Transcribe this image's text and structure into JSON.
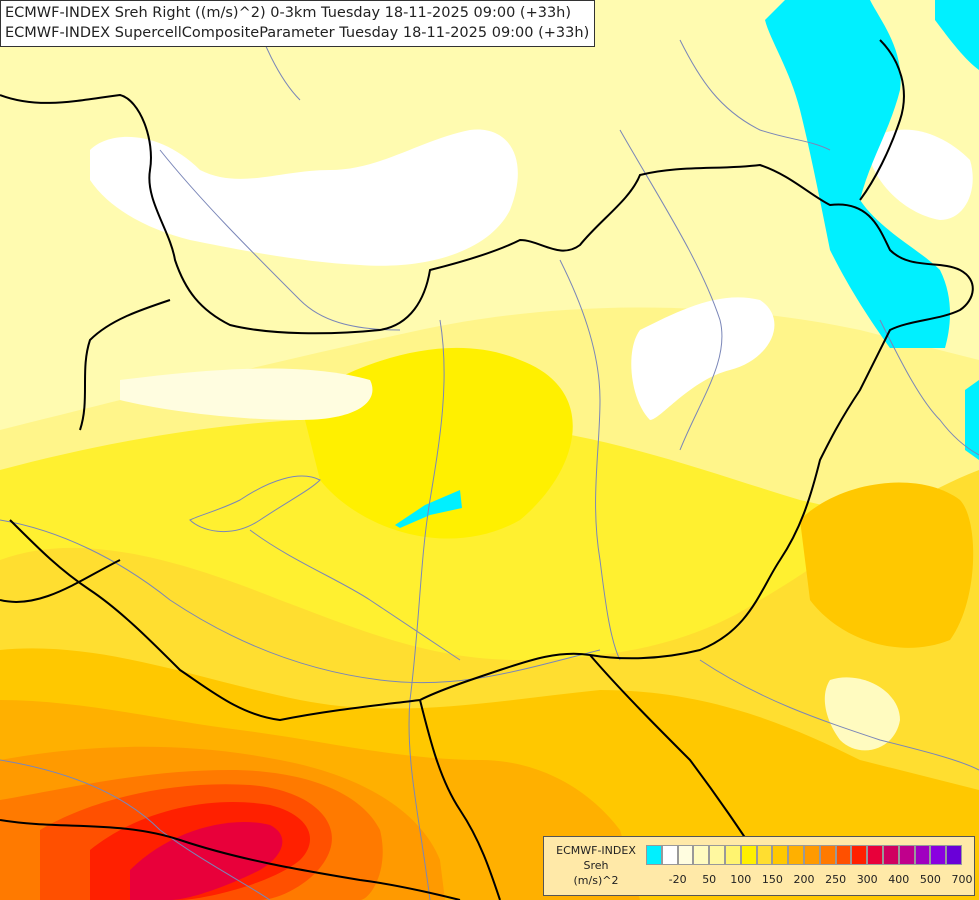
{
  "header": {
    "line1": "ECMWF-INDEX Sreh Right ((m/s)^2) 0-3km Tuesday 18-11-2025 09:00 (+33h)",
    "line2": "ECMWF-INDEX SupercellCompositeParameter Tuesday 18-11-2025 09:00 (+33h)"
  },
  "legend": {
    "model": "ECMWF-INDEX",
    "param": "Sreh",
    "unit": "(m/s)^2",
    "colors": [
      "#00f0ff",
      "#ffffff",
      "#fffde0",
      "#fffbc0",
      "#fff8a0",
      "#fff470",
      "#fff000",
      "#ffde30",
      "#ffc800",
      "#ffb000",
      "#ff9a00",
      "#ff7a00",
      "#ff5000",
      "#ff2000",
      "#e8003a",
      "#d00060",
      "#c0008c",
      "#a000c0",
      "#8a00e0",
      "#6a00d8",
      "#4800b0",
      "#2a0090",
      "#14006a",
      "#0a0050"
    ],
    "ticks": [
      {
        "label": "-20",
        "index": 1
      },
      {
        "label": "50",
        "index": 3
      },
      {
        "label": "100",
        "index": 5
      },
      {
        "label": "150",
        "index": 7
      },
      {
        "label": "200",
        "index": 9
      },
      {
        "label": "250",
        "index": 11
      },
      {
        "label": "300",
        "index": 13
      },
      {
        "label": "400",
        "index": 15
      },
      {
        "label": "500",
        "index": 17
      },
      {
        "label": "700",
        "index": 19
      }
    ]
  }
}
